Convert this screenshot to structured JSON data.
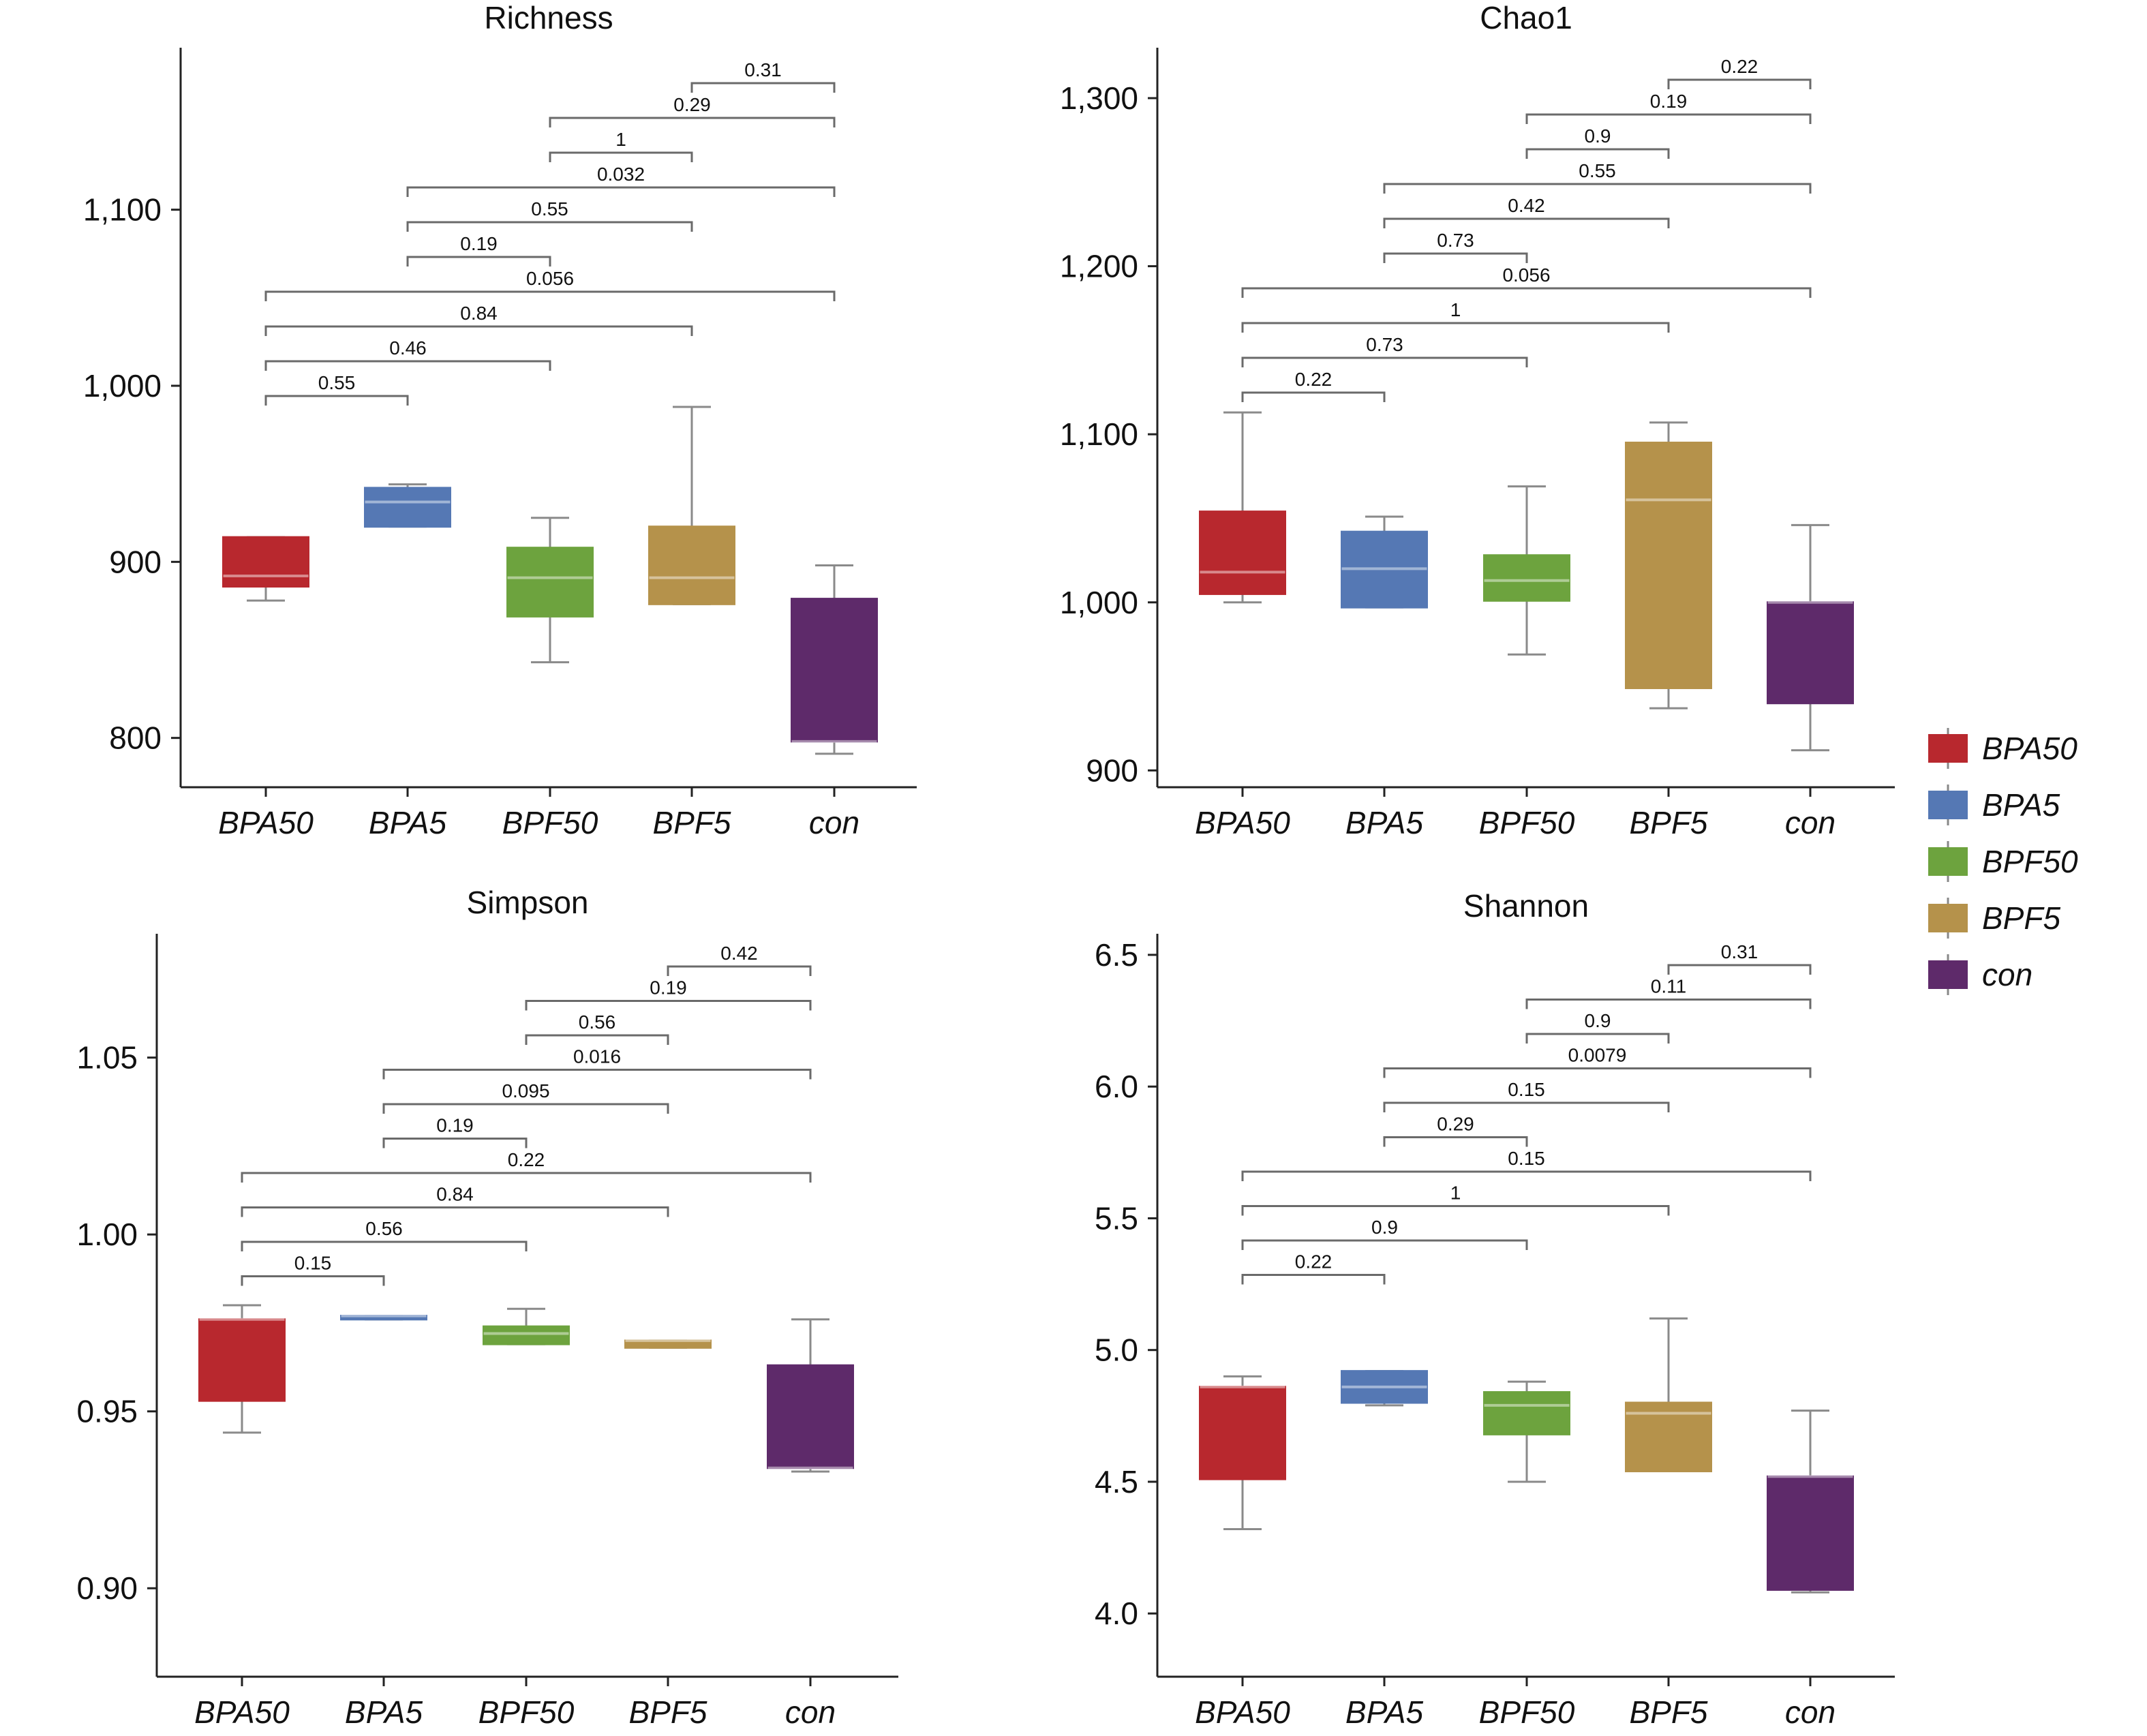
{
  "chart_data": [
    {
      "type": "box",
      "title": "Richness",
      "categories": [
        "BPA50",
        "BPA5",
        "BPF50",
        "BPF5",
        "con"
      ],
      "ylim": [
        772,
        1192
      ],
      "yticks": [
        800,
        900,
        1000,
        1100
      ],
      "ytick_labels": [
        "800",
        "900",
        "1,000",
        "1,100"
      ],
      "boxes": [
        {
          "group": "BPA50",
          "min": 878,
          "q1": 886,
          "median": 892,
          "q3": 914,
          "max": 914
        },
        {
          "group": "BPA5",
          "min": 920,
          "q1": 920,
          "median": 934,
          "q3": 942,
          "max": 944
        },
        {
          "group": "BPF50",
          "min": 843,
          "q1": 869,
          "median": 891,
          "q3": 908,
          "max": 925
        },
        {
          "group": "BPF5",
          "min": 876,
          "q1": 876,
          "median": 891,
          "q3": 920,
          "max": 988
        },
        {
          "group": "con",
          "min": 791,
          "q1": 798,
          "median": 798,
          "q3": 879,
          "max": 898
        }
      ],
      "comparisons": [
        {
          "a": "BPF5",
          "b": "con",
          "p": "0.31"
        },
        {
          "a": "BPF50",
          "b": "con",
          "p": "0.29"
        },
        {
          "a": "BPF50",
          "b": "BPF5",
          "p": "1"
        },
        {
          "a": "BPA5",
          "b": "con",
          "p": "0.032"
        },
        {
          "a": "BPA5",
          "b": "BPF5",
          "p": "0.55"
        },
        {
          "a": "BPA5",
          "b": "BPF50",
          "p": "0.19"
        },
        {
          "a": "BPA50",
          "b": "con",
          "p": "0.056"
        },
        {
          "a": "BPA50",
          "b": "BPF5",
          "p": "0.84"
        },
        {
          "a": "BPA50",
          "b": "BPF50",
          "p": "0.46"
        },
        {
          "a": "BPA50",
          "b": "BPA5",
          "p": "0.55"
        }
      ]
    },
    {
      "type": "box",
      "title": "Chao1",
      "categories": [
        "BPA50",
        "BPA5",
        "BPF50",
        "BPF5",
        "con"
      ],
      "ylim": [
        890,
        1330
      ],
      "yticks": [
        900,
        1000,
        1100,
        1200,
        1300
      ],
      "ytick_labels": [
        "900",
        "1,000",
        "1,100",
        "1,200",
        "1,300"
      ],
      "boxes": [
        {
          "group": "BPA50",
          "min": 1000,
          "q1": 1005,
          "median": 1018,
          "q3": 1054,
          "max": 1113
        },
        {
          "group": "BPA5",
          "min": 997,
          "q1": 997,
          "median": 1020,
          "q3": 1042,
          "max": 1051
        },
        {
          "group": "BPF50",
          "min": 969,
          "q1": 1001,
          "median": 1013,
          "q3": 1028,
          "max": 1069
        },
        {
          "group": "BPF5",
          "min": 937,
          "q1": 949,
          "median": 1061,
          "q3": 1095,
          "max": 1107
        },
        {
          "group": "con",
          "min": 912,
          "q1": 940,
          "median": 1000,
          "q3": 1000,
          "max": 1046
        }
      ],
      "comparisons": [
        {
          "a": "BPF5",
          "b": "con",
          "p": "0.22"
        },
        {
          "a": "BPF50",
          "b": "con",
          "p": "0.19"
        },
        {
          "a": "BPF50",
          "b": "BPF5",
          "p": "0.9"
        },
        {
          "a": "BPA5",
          "b": "con",
          "p": "0.55"
        },
        {
          "a": "BPA5",
          "b": "BPF5",
          "p": "0.42"
        },
        {
          "a": "BPA5",
          "b": "BPF50",
          "p": "0.73"
        },
        {
          "a": "BPA50",
          "b": "con",
          "p": "0.056"
        },
        {
          "a": "BPA50",
          "b": "BPF5",
          "p": "1"
        },
        {
          "a": "BPA50",
          "b": "BPF50",
          "p": "0.73"
        },
        {
          "a": "BPA50",
          "b": "BPA5",
          "p": "0.22"
        }
      ]
    },
    {
      "type": "box",
      "title": "Simpson",
      "categories": [
        "BPA50",
        "BPA5",
        "BPF50",
        "BPF5",
        "con"
      ],
      "ylim": [
        0.875,
        1.085
      ],
      "yticks": [
        0.9,
        0.95,
        1.0,
        1.05
      ],
      "ytick_labels": [
        "0.90",
        "0.95",
        "1.00",
        "1.05"
      ],
      "boxes": [
        {
          "group": "BPA50",
          "min": 0.944,
          "q1": 0.953,
          "median": 0.976,
          "q3": 0.976,
          "max": 0.98
        },
        {
          "group": "BPA5",
          "min": 0.976,
          "q1": 0.976,
          "median": 0.977,
          "q3": 0.977,
          "max": 0.977
        },
        {
          "group": "BPF50",
          "min": 0.969,
          "q1": 0.969,
          "median": 0.972,
          "q3": 0.974,
          "max": 0.979
        },
        {
          "group": "BPF5",
          "min": 0.968,
          "q1": 0.968,
          "median": 0.97,
          "q3": 0.97,
          "max": 0.97
        },
        {
          "group": "con",
          "min": 0.933,
          "q1": 0.934,
          "median": 0.934,
          "q3": 0.963,
          "max": 0.976
        }
      ],
      "comparisons": [
        {
          "a": "BPF5",
          "b": "con",
          "p": "0.42"
        },
        {
          "a": "BPF50",
          "b": "con",
          "p": "0.19"
        },
        {
          "a": "BPF50",
          "b": "BPF5",
          "p": "0.56"
        },
        {
          "a": "BPA5",
          "b": "con",
          "p": "0.016"
        },
        {
          "a": "BPA5",
          "b": "BPF5",
          "p": "0.095"
        },
        {
          "a": "BPA5",
          "b": "BPF50",
          "p": "0.19"
        },
        {
          "a": "BPA50",
          "b": "con",
          "p": "0.22"
        },
        {
          "a": "BPA50",
          "b": "BPF5",
          "p": "0.84"
        },
        {
          "a": "BPA50",
          "b": "BPF50",
          "p": "0.56"
        },
        {
          "a": "BPA50",
          "b": "BPA5",
          "p": "0.15"
        }
      ]
    },
    {
      "type": "box",
      "title": "Shannon",
      "categories": [
        "BPA50",
        "BPA5",
        "BPF50",
        "BPF5",
        "con"
      ],
      "ylim": [
        3.76,
        6.58
      ],
      "yticks": [
        4.0,
        4.5,
        5.0,
        5.5,
        6.0,
        6.5
      ],
      "ytick_labels": [
        "4.0",
        "4.5",
        "5.0",
        "5.5",
        "6.0",
        "6.5"
      ],
      "boxes": [
        {
          "group": "BPA50",
          "min": 4.32,
          "q1": 4.51,
          "median": 4.86,
          "q3": 4.86,
          "max": 4.9
        },
        {
          "group": "BPA5",
          "min": 4.79,
          "q1": 4.8,
          "median": 4.86,
          "q3": 4.92,
          "max": 4.92
        },
        {
          "group": "BPF50",
          "min": 4.5,
          "q1": 4.68,
          "median": 4.79,
          "q3": 4.84,
          "max": 4.88
        },
        {
          "group": "BPF5",
          "min": 4.54,
          "q1": 4.54,
          "median": 4.76,
          "q3": 4.8,
          "max": 5.12
        },
        {
          "group": "con",
          "min": 4.08,
          "q1": 4.09,
          "median": 4.52,
          "q3": 4.52,
          "max": 4.77
        }
      ],
      "comparisons": [
        {
          "a": "BPF5",
          "b": "con",
          "p": "0.31"
        },
        {
          "a": "BPF50",
          "b": "con",
          "p": "0.11"
        },
        {
          "a": "BPF50",
          "b": "BPF5",
          "p": "0.9"
        },
        {
          "a": "BPA5",
          "b": "con",
          "p": "0.0079"
        },
        {
          "a": "BPA5",
          "b": "BPF5",
          "p": "0.15"
        },
        {
          "a": "BPA5",
          "b": "BPF50",
          "p": "0.29"
        },
        {
          "a": "BPA50",
          "b": "con",
          "p": "0.15"
        },
        {
          "a": "BPA50",
          "b": "BPF5",
          "p": "1"
        },
        {
          "a": "BPA50",
          "b": "BPF50",
          "p": "0.9"
        },
        {
          "a": "BPA50",
          "b": "BPA5",
          "p": "0.22"
        }
      ]
    }
  ],
  "legend": {
    "items": [
      {
        "label": "BPA50",
        "color": "#b8282e"
      },
      {
        "label": "BPA5",
        "color": "#5578b4"
      },
      {
        "label": "BPF50",
        "color": "#6da33e"
      },
      {
        "label": "BPF5",
        "color": "#b5924b"
      },
      {
        "label": "con",
        "color": "#5e2a6a"
      }
    ]
  },
  "colors": {
    "BPA50": "#b8282e",
    "BPA5": "#5578b4",
    "BPF50": "#6da33e",
    "BPF5": "#b5924b",
    "con": "#5e2a6a"
  }
}
